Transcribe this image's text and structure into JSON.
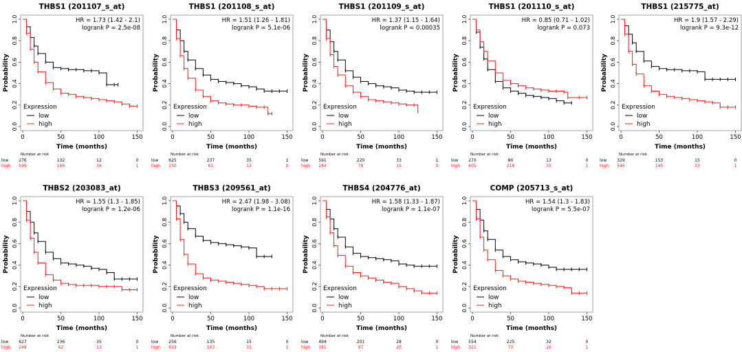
{
  "figure": {
    "xlabel": "Time (months)",
    "ylabel": "Probability",
    "legend_title": "Expression",
    "low_label": "low",
    "high_label": "high",
    "risk_title": "Number at risk",
    "x_ticks": [
      "0",
      "50",
      "100",
      "150"
    ],
    "y_ticks": [
      "0.0",
      "0.2",
      "0.4",
      "0.6",
      "0.8",
      "1.0"
    ],
    "colors": {
      "low": "#000000",
      "high": "#ee1c1c",
      "frame": "#888888"
    }
  },
  "chart_data": [
    {
      "type": "line",
      "title": "THBS1 (201107_s_at)",
      "hr_text": "HR = 1.73 (1.42 - 2.1)",
      "p_text": "logrank P = 2.5e-08",
      "xlim": [
        0,
        155
      ],
      "ylim": [
        0,
        1
      ],
      "series": [
        {
          "name": "low",
          "x": [
            0,
            5,
            10,
            15,
            20,
            30,
            40,
            50,
            60,
            70,
            80,
            90,
            100,
            110,
            120,
            125
          ],
          "y": [
            1.0,
            0.93,
            0.83,
            0.75,
            0.68,
            0.6,
            0.55,
            0.54,
            0.53,
            0.53,
            0.52,
            0.52,
            0.5,
            0.39,
            0.39,
            0.39
          ]
        },
        {
          "name": "high",
          "x": [
            0,
            5,
            10,
            15,
            20,
            30,
            40,
            50,
            60,
            70,
            80,
            90,
            100,
            110,
            120,
            130,
            140,
            150
          ],
          "y": [
            1.0,
            0.87,
            0.72,
            0.6,
            0.51,
            0.41,
            0.35,
            0.31,
            0.3,
            0.28,
            0.27,
            0.26,
            0.25,
            0.24,
            0.23,
            0.21,
            0.19,
            0.19
          ]
        }
      ],
      "risk": {
        "low": [
          "low",
          "276",
          "132",
          "12",
          "0"
        ],
        "high": [
          "high",
          "599",
          "166",
          "36",
          "1"
        ]
      }
    },
    {
      "type": "line",
      "title": "THBS1 (201108_s_at)",
      "hr_text": "HR = 1.51 (1.26 - 1.81)",
      "p_text": "logrank P = 5.1e-06",
      "xlim": [
        0,
        155
      ],
      "ylim": [
        0,
        1
      ],
      "series": [
        {
          "name": "low",
          "x": [
            0,
            5,
            10,
            15,
            20,
            30,
            40,
            50,
            60,
            70,
            80,
            90,
            100,
            110,
            120,
            130,
            140,
            150
          ],
          "y": [
            1.0,
            0.9,
            0.8,
            0.7,
            0.62,
            0.54,
            0.48,
            0.44,
            0.42,
            0.41,
            0.4,
            0.38,
            0.37,
            0.35,
            0.33,
            0.33,
            0.33,
            0.33
          ]
        },
        {
          "name": "high",
          "x": [
            0,
            5,
            10,
            15,
            20,
            30,
            40,
            50,
            60,
            70,
            80,
            90,
            100,
            110,
            120,
            125,
            130
          ],
          "y": [
            1.0,
            0.82,
            0.66,
            0.54,
            0.45,
            0.34,
            0.28,
            0.24,
            0.22,
            0.21,
            0.2,
            0.2,
            0.19,
            0.18,
            0.18,
            0.12,
            0.12
          ]
        }
      ],
      "risk": {
        "low": [
          "low",
          "625",
          "237",
          "35",
          "1"
        ],
        "high": [
          "high",
          "250",
          "61",
          "13",
          "0"
        ]
      }
    },
    {
      "type": "line",
      "title": "THBS1 (201109_s_at)",
      "hr_text": "HR = 1.37 (1.15 - 1.64)",
      "p_text": "logrank P = 0.00035",
      "xlim": [
        0,
        155
      ],
      "ylim": [
        0,
        1
      ],
      "series": [
        {
          "name": "low",
          "x": [
            0,
            5,
            10,
            15,
            20,
            30,
            40,
            50,
            60,
            70,
            80,
            90,
            100,
            110,
            120,
            130,
            140,
            150
          ],
          "y": [
            1.0,
            0.9,
            0.79,
            0.7,
            0.62,
            0.52,
            0.46,
            0.42,
            0.4,
            0.38,
            0.37,
            0.36,
            0.34,
            0.33,
            0.32,
            0.32,
            0.32,
            0.32
          ]
        },
        {
          "name": "high",
          "x": [
            0,
            5,
            10,
            15,
            20,
            30,
            40,
            50,
            60,
            70,
            80,
            90,
            100,
            110,
            120,
            125
          ],
          "y": [
            1.0,
            0.82,
            0.67,
            0.56,
            0.48,
            0.38,
            0.32,
            0.28,
            0.25,
            0.24,
            0.23,
            0.22,
            0.21,
            0.2,
            0.2,
            0.14
          ]
        }
      ],
      "risk": {
        "low": [
          "low",
          "591",
          "220",
          "33",
          "1"
        ],
        "high": [
          "high",
          "284",
          "78",
          "15",
          "0"
        ]
      }
    },
    {
      "type": "line",
      "title": "THBS1 (201110_s_at)",
      "hr_text": "HR = 0.85 (0.71 - 1.02)",
      "p_text": "logrank P = 0.073",
      "xlim": [
        0,
        155
      ],
      "ylim": [
        0,
        1
      ],
      "series": [
        {
          "name": "low",
          "x": [
            0,
            5,
            10,
            15,
            20,
            30,
            40,
            50,
            60,
            70,
            80,
            90,
            100,
            110,
            120,
            130
          ],
          "y": [
            1.0,
            0.88,
            0.74,
            0.63,
            0.53,
            0.42,
            0.36,
            0.33,
            0.31,
            0.29,
            0.28,
            0.27,
            0.26,
            0.24,
            0.22,
            0.22
          ]
        },
        {
          "name": "high",
          "x": [
            0,
            5,
            10,
            15,
            20,
            30,
            40,
            50,
            60,
            70,
            80,
            90,
            100,
            110,
            120,
            125,
            140,
            150
          ],
          "y": [
            1.0,
            0.9,
            0.79,
            0.7,
            0.61,
            0.5,
            0.43,
            0.4,
            0.38,
            0.36,
            0.35,
            0.34,
            0.33,
            0.33,
            0.32,
            0.27,
            0.27,
            0.27
          ]
        }
      ],
      "risk": {
        "low": [
          "low",
          "270",
          "80",
          "13",
          "0"
        ],
        "high": [
          "high",
          "605",
          "218",
          "35",
          "1"
        ]
      }
    },
    {
      "type": "line",
      "title": "THBS1 (215775_at)",
      "hr_text": "HR = 1.9 (1.57 - 2.29)",
      "p_text": "logrank P = 9.3e-12",
      "xlim": [
        0,
        155
      ],
      "ylim": [
        0,
        1
      ],
      "series": [
        {
          "name": "low",
          "x": [
            0,
            5,
            10,
            15,
            20,
            30,
            40,
            50,
            60,
            70,
            80,
            90,
            100,
            110,
            120,
            130,
            140,
            150
          ],
          "y": [
            1.0,
            0.94,
            0.86,
            0.78,
            0.7,
            0.61,
            0.56,
            0.54,
            0.53,
            0.53,
            0.52,
            0.52,
            0.51,
            0.44,
            0.44,
            0.44,
            0.44,
            0.44
          ]
        },
        {
          "name": "high",
          "x": [
            0,
            5,
            10,
            15,
            20,
            30,
            40,
            50,
            60,
            70,
            80,
            90,
            100,
            110,
            120,
            130,
            140,
            150
          ],
          "y": [
            1.0,
            0.86,
            0.7,
            0.58,
            0.49,
            0.38,
            0.33,
            0.3,
            0.28,
            0.27,
            0.26,
            0.25,
            0.24,
            0.23,
            0.22,
            0.18,
            0.18,
            0.18
          ]
        }
      ],
      "risk": {
        "low": [
          "low",
          "329",
          "153",
          "15",
          "0"
        ],
        "high": [
          "high",
          "546",
          "145",
          "33",
          "1"
        ]
      }
    },
    {
      "type": "line",
      "title": "THBS2 (203083_at)",
      "hr_text": "HR = 1.55 (1.3 - 1.85)",
      "p_text": "logrank P = 1.2e-06",
      "xlim": [
        0,
        155
      ],
      "ylim": [
        0,
        1
      ],
      "series": [
        {
          "name": "low",
          "x": [
            0,
            5,
            10,
            15,
            20,
            30,
            40,
            50,
            60,
            70,
            80,
            90,
            100,
            110,
            120,
            130,
            140,
            150
          ],
          "y": [
            1.0,
            0.9,
            0.8,
            0.7,
            0.62,
            0.52,
            0.46,
            0.42,
            0.41,
            0.4,
            0.39,
            0.37,
            0.36,
            0.33,
            0.27,
            0.27,
            0.27,
            0.27
          ]
        },
        {
          "name": "high",
          "x": [
            0,
            5,
            10,
            15,
            20,
            30,
            40,
            50,
            60,
            70,
            80,
            90,
            100,
            110,
            120,
            130,
            140,
            150
          ],
          "y": [
            1.0,
            0.82,
            0.65,
            0.52,
            0.42,
            0.31,
            0.26,
            0.23,
            0.22,
            0.21,
            0.21,
            0.21,
            0.2,
            0.2,
            0.2,
            0.17,
            0.17,
            0.17
          ]
        }
      ],
      "risk": {
        "low": [
          "low",
          "627",
          "236",
          "35",
          "0"
        ],
        "high": [
          "high",
          "248",
          "62",
          "13",
          "1"
        ]
      }
    },
    {
      "type": "line",
      "title": "THBS3 (209561_at)",
      "hr_text": "HR = 2.47 (1.98 - 3.08)",
      "p_text": "logrank P = 1.1e-16",
      "xlim": [
        0,
        155
      ],
      "ylim": [
        0,
        1
      ],
      "series": [
        {
          "name": "low",
          "x": [
            0,
            5,
            10,
            15,
            20,
            30,
            40,
            50,
            60,
            70,
            80,
            90,
            100,
            110,
            120,
            130
          ],
          "y": [
            1.0,
            0.95,
            0.88,
            0.8,
            0.74,
            0.67,
            0.63,
            0.61,
            0.6,
            0.59,
            0.58,
            0.57,
            0.56,
            0.48,
            0.48,
            0.48
          ]
        },
        {
          "name": "high",
          "x": [
            0,
            5,
            10,
            15,
            20,
            30,
            40,
            50,
            60,
            70,
            80,
            90,
            100,
            110,
            120,
            130,
            140,
            150
          ],
          "y": [
            1.0,
            0.83,
            0.64,
            0.5,
            0.41,
            0.32,
            0.28,
            0.26,
            0.25,
            0.24,
            0.23,
            0.22,
            0.21,
            0.2,
            0.18,
            0.18,
            0.18,
            0.18
          ]
        }
      ],
      "risk": {
        "low": [
          "low",
          "256",
          "135",
          "15",
          "0"
        ],
        "high": [
          "high",
          "619",
          "163",
          "33",
          "1"
        ]
      }
    },
    {
      "type": "line",
      "title": "THBS4 (204776_at)",
      "hr_text": "HR = 1.58 (1.33 - 1.87)",
      "p_text": "logrank P = 1.1e-07",
      "xlim": [
        0,
        155
      ],
      "ylim": [
        0,
        1
      ],
      "series": [
        {
          "name": "low",
          "x": [
            0,
            5,
            10,
            15,
            20,
            30,
            40,
            50,
            60,
            70,
            80,
            90,
            100,
            110,
            120,
            130,
            140,
            150
          ],
          "y": [
            1.0,
            0.92,
            0.83,
            0.74,
            0.66,
            0.57,
            0.51,
            0.48,
            0.47,
            0.46,
            0.45,
            0.44,
            0.41,
            0.4,
            0.39,
            0.39,
            0.39,
            0.39
          ]
        },
        {
          "name": "high",
          "x": [
            0,
            5,
            10,
            15,
            20,
            30,
            40,
            50,
            60,
            70,
            80,
            90,
            100,
            110,
            120,
            130,
            140,
            150
          ],
          "y": [
            1.0,
            0.85,
            0.7,
            0.58,
            0.49,
            0.39,
            0.33,
            0.3,
            0.28,
            0.26,
            0.24,
            0.23,
            0.2,
            0.18,
            0.16,
            0.14,
            0.14,
            0.14
          ]
        }
      ],
      "risk": {
        "low": [
          "low",
          "494",
          "201",
          "28",
          "0"
        ],
        "high": [
          "high",
          "381",
          "97",
          "20",
          "1"
        ]
      }
    },
    {
      "type": "line",
      "title": "COMP (205713_s_at)",
      "hr_text": "HR = 1.54 (1.3 - 1.83)",
      "p_text": "logrank P = 5.5e-07",
      "xlim": [
        0,
        155
      ],
      "ylim": [
        0,
        1
      ],
      "series": [
        {
          "name": "low",
          "x": [
            0,
            5,
            10,
            15,
            20,
            30,
            40,
            50,
            60,
            70,
            80,
            90,
            100,
            110,
            120,
            130,
            140,
            150
          ],
          "y": [
            1.0,
            0.92,
            0.82,
            0.72,
            0.64,
            0.54,
            0.48,
            0.45,
            0.43,
            0.42,
            0.41,
            0.4,
            0.38,
            0.36,
            0.36,
            0.36,
            0.36,
            0.36
          ]
        },
        {
          "name": "high",
          "x": [
            0,
            5,
            10,
            15,
            20,
            30,
            40,
            50,
            60,
            70,
            80,
            90,
            100,
            110,
            120,
            130,
            140,
            150
          ],
          "y": [
            1.0,
            0.83,
            0.66,
            0.54,
            0.45,
            0.35,
            0.3,
            0.27,
            0.25,
            0.24,
            0.23,
            0.22,
            0.21,
            0.2,
            0.19,
            0.14,
            0.14,
            0.14
          ]
        }
      ],
      "risk": {
        "low": [
          "low",
          "554",
          "225",
          "32",
          "0"
        ],
        "high": [
          "high",
          "321",
          "73",
          "16",
          "1"
        ]
      }
    }
  ]
}
